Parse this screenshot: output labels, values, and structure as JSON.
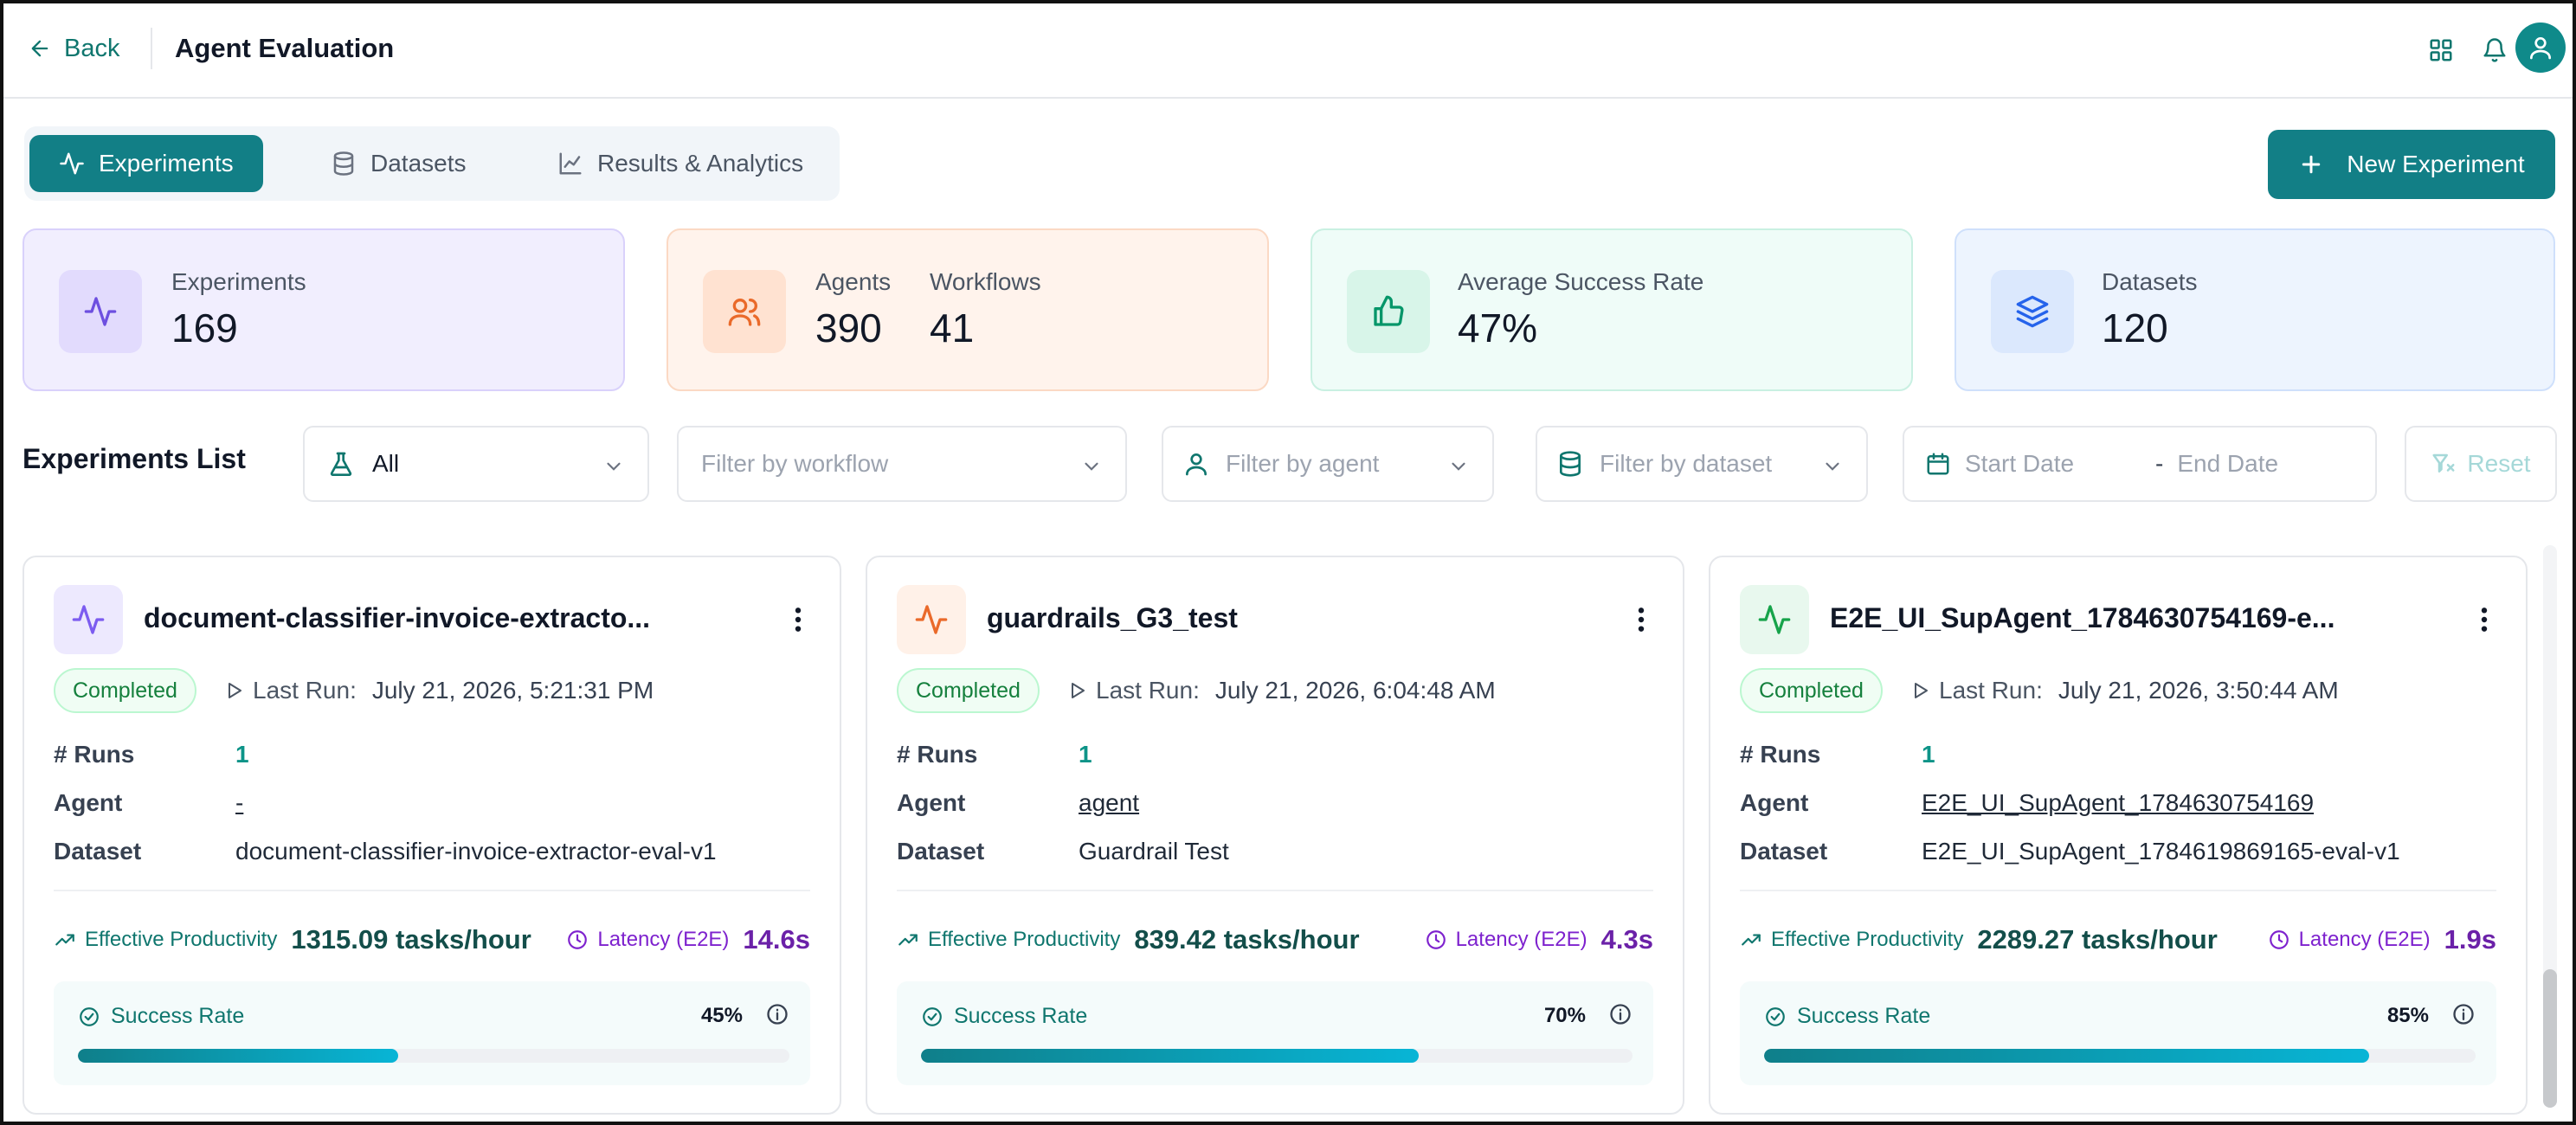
{
  "header": {
    "back_label": "Back",
    "title": "Agent Evaluation",
    "icons": [
      "grid-icon",
      "bell-icon",
      "user-avatar-icon"
    ]
  },
  "tabs": [
    {
      "label": "Experiments",
      "icon": "activity-icon",
      "active": true
    },
    {
      "label": "Datasets",
      "icon": "database-icon",
      "active": false
    },
    {
      "label": "Results & Analytics",
      "icon": "line-chart-icon",
      "active": false
    }
  ],
  "new_experiment_label": "New Experiment",
  "stats": {
    "experiments": {
      "label": "Experiments",
      "value": "169"
    },
    "agents": {
      "label": "Agents",
      "value": "390"
    },
    "workflows": {
      "label": "Workflows",
      "value": "41"
    },
    "success": {
      "label": "Average Success Rate",
      "value": "47%"
    },
    "datasets": {
      "label": "Datasets",
      "value": "120"
    }
  },
  "filters": {
    "title": "Experiments List",
    "type_value": "All",
    "workflow_placeholder": "Filter by workflow",
    "agent_placeholder": "Filter by agent",
    "dataset_placeholder": "Filter by dataset",
    "start_date_placeholder": "Start Date",
    "date_separator": "-",
    "end_date_placeholder": "End Date",
    "reset_label": "Reset"
  },
  "experiments": [
    {
      "name": "document-classifier-invoice-extracto...",
      "status": "Completed",
      "last_run_label": "Last Run:",
      "last_run": "July 21, 2026, 5:21:31 PM",
      "runs_label": "# Runs",
      "runs": "1",
      "agent_label": "Agent",
      "agent": "-",
      "dataset_label": "Dataset",
      "dataset": "document-classifier-invoice-extractor-eval-v1",
      "productivity_label": "Effective Productivity",
      "productivity": "1315.09 tasks/hour",
      "latency_label": "Latency (E2E)",
      "latency": "14.6s",
      "success_label": "Success Rate",
      "success_pct": "45%",
      "success_value": 45,
      "icon_color": "#7c5cf0",
      "icon_bg": "#ede9fe"
    },
    {
      "name": "guardrails_G3_test",
      "status": "Completed",
      "last_run_label": "Last Run:",
      "last_run": "July 21, 2026, 6:04:48 AM",
      "runs_label": "# Runs",
      "runs": "1",
      "agent_label": "Agent",
      "agent": "agent",
      "dataset_label": "Dataset",
      "dataset": "Guardrail Test",
      "productivity_label": "Effective Productivity",
      "productivity": "839.42 tasks/hour",
      "latency_label": "Latency (E2E)",
      "latency": "4.3s",
      "success_label": "Success Rate",
      "success_pct": "70%",
      "success_value": 70,
      "icon_color": "#ea6a2a",
      "icon_bg": "#fff1e8"
    },
    {
      "name": "E2E_UI_SupAgent_1784630754169-e...",
      "status": "Completed",
      "last_run_label": "Last Run:",
      "last_run": "July 21, 2026, 3:50:44 AM",
      "runs_label": "# Runs",
      "runs": "1",
      "agent_label": "Agent",
      "agent": "E2E_UI_SupAgent_1784630754169",
      "dataset_label": "Dataset",
      "dataset": "E2E_UI_SupAgent_1784619869165-eval-v1",
      "productivity_label": "Effective Productivity",
      "productivity": "2289.27 tasks/hour",
      "latency_label": "Latency (E2E)",
      "latency": "1.9s",
      "success_label": "Success Rate",
      "success_pct": "85%",
      "success_value": 85,
      "icon_color": "#16a34a",
      "icon_bg": "#e8f8ee"
    }
  ],
  "colors": {
    "primary": "#127f86",
    "success": "#15803d",
    "latency": "#7e22ce"
  }
}
